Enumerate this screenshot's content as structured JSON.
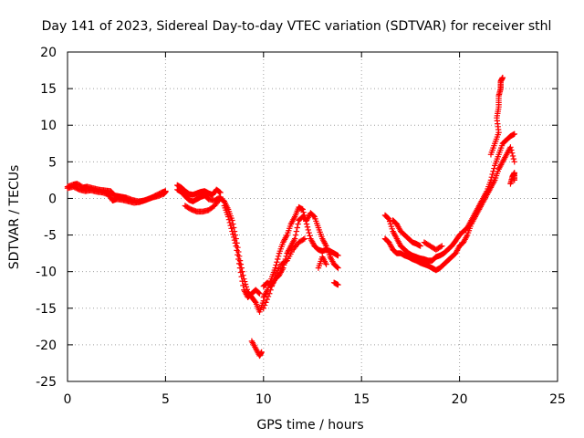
{
  "chart_data": {
    "type": "scatter",
    "title": "Day 141 of 2023, Sidereal Day-to-day VTEC variation (SDTVAR) for receiver sthl",
    "xlabel": "GPS time / hours",
    "ylabel": "SDTVAR / TECUs",
    "xlim": [
      0,
      25
    ],
    "ylim": [
      -25,
      20
    ],
    "x_ticks": [
      0,
      5,
      10,
      15,
      20,
      25
    ],
    "x_tick_labels": [
      "0",
      "5",
      "10",
      "15",
      "20",
      "25"
    ],
    "y_ticks": [
      -25,
      -20,
      -15,
      -10,
      -5,
      0,
      5,
      10,
      15,
      20
    ],
    "y_tick_labels": [
      "-25",
      "-20",
      "-15",
      "-10",
      "-5",
      "0",
      "5",
      "10",
      "15",
      "20"
    ],
    "grid": true,
    "marker": "+",
    "marker_color": "#ff0000",
    "series": [
      {
        "name": "sthl",
        "segments": [
          [
            [
              0.0,
              1.6
            ],
            [
              0.3,
              1.9
            ],
            [
              0.5,
              2.0
            ],
            [
              0.8,
              1.5
            ],
            [
              1.0,
              1.6
            ],
            [
              1.3,
              1.4
            ],
            [
              1.6,
              1.2
            ],
            [
              1.9,
              1.1
            ],
            [
              2.2,
              1.0
            ],
            [
              2.4,
              0.4
            ],
            [
              2.6,
              0.3
            ],
            [
              2.8,
              0.2
            ],
            [
              3.0,
              0.1
            ],
            [
              3.3,
              -0.2
            ],
            [
              3.6,
              -0.4
            ],
            [
              3.9,
              -0.3
            ],
            [
              4.2,
              0.0
            ],
            [
              4.5,
              0.4
            ],
            [
              4.8,
              0.8
            ],
            [
              5.0,
              1.0
            ]
          ],
          [
            [
              0.0,
              1.4
            ],
            [
              0.3,
              1.6
            ],
            [
              0.6,
              1.2
            ],
            [
              0.9,
              1.0
            ],
            [
              1.2,
              1.1
            ],
            [
              1.5,
              0.9
            ],
            [
              1.8,
              0.8
            ],
            [
              2.1,
              0.5
            ],
            [
              2.3,
              -0.3
            ],
            [
              2.5,
              -0.1
            ],
            [
              2.8,
              -0.2
            ],
            [
              3.1,
              -0.4
            ],
            [
              3.4,
              -0.6
            ],
            [
              3.7,
              -0.5
            ],
            [
              4.0,
              -0.2
            ],
            [
              4.3,
              0.1
            ],
            [
              4.6,
              0.3
            ],
            [
              4.9,
              0.6
            ],
            [
              5.0,
              0.9
            ]
          ],
          [
            [
              5.6,
              1.8
            ],
            [
              5.8,
              1.5
            ],
            [
              6.0,
              1.0
            ],
            [
              6.2,
              0.6
            ],
            [
              6.4,
              0.5
            ],
            [
              6.6,
              0.7
            ],
            [
              6.8,
              0.9
            ],
            [
              7.0,
              1.0
            ],
            [
              7.2,
              0.7
            ],
            [
              7.4,
              0.5
            ],
            [
              7.6,
              1.2
            ],
            [
              7.8,
              0.8
            ]
          ],
          [
            [
              5.6,
              1.2
            ],
            [
              5.8,
              0.9
            ],
            [
              6.0,
              0.3
            ],
            [
              6.2,
              -0.2
            ],
            [
              6.4,
              -0.4
            ],
            [
              6.6,
              -0.1
            ],
            [
              6.8,
              0.2
            ],
            [
              7.0,
              0.4
            ],
            [
              7.2,
              -0.1
            ],
            [
              7.5,
              -0.3
            ],
            [
              7.8,
              0.2
            ]
          ],
          [
            [
              6.0,
              -1.0
            ],
            [
              6.3,
              -1.5
            ],
            [
              6.6,
              -1.8
            ],
            [
              6.9,
              -1.8
            ],
            [
              7.2,
              -1.6
            ],
            [
              7.5,
              -1.0
            ],
            [
              7.8,
              0.0
            ],
            [
              8.0,
              -0.4
            ],
            [
              8.2,
              -1.5
            ],
            [
              8.4,
              -3.0
            ],
            [
              8.6,
              -5.5
            ],
            [
              8.8,
              -8.5
            ],
            [
              9.0,
              -11.0
            ],
            [
              9.2,
              -12.8
            ],
            [
              9.4,
              -13.5
            ],
            [
              9.6,
              -14.2
            ],
            [
              9.8,
              -15.5
            ],
            [
              10.0,
              -14.0
            ]
          ],
          [
            [
              8.0,
              -1.0
            ],
            [
              8.2,
              -2.5
            ],
            [
              8.4,
              -4.5
            ],
            [
              8.6,
              -6.5
            ],
            [
              8.8,
              -9.5
            ],
            [
              9.0,
              -12.5
            ],
            [
              9.2,
              -13.5
            ],
            [
              9.4,
              -13.0
            ],
            [
              9.6,
              -12.5
            ],
            [
              9.8,
              -13.0
            ]
          ],
          [
            [
              9.4,
              -19.5
            ],
            [
              9.6,
              -20.5
            ],
            [
              9.8,
              -21.5
            ],
            [
              9.9,
              -21.0
            ]
          ],
          [
            [
              10.0,
              -13.5
            ],
            [
              10.2,
              -12.5
            ],
            [
              10.4,
              -11.0
            ],
            [
              10.6,
              -9.5
            ],
            [
              10.8,
              -7.5
            ],
            [
              11.0,
              -6.0
            ],
            [
              11.2,
              -5.0
            ],
            [
              11.4,
              -3.5
            ],
            [
              11.6,
              -2.5
            ],
            [
              11.8,
              -1.2
            ],
            [
              12.0,
              -1.5
            ],
            [
              12.2,
              -3.5
            ],
            [
              12.4,
              -5.5
            ],
            [
              12.6,
              -6.5
            ],
            [
              12.8,
              -7.0
            ],
            [
              13.0,
              -7.2
            ],
            [
              13.2,
              -7.0
            ],
            [
              13.4,
              -7.2
            ],
            [
              13.6,
              -7.5
            ],
            [
              13.8,
              -7.8
            ]
          ],
          [
            [
              10.0,
              -12.0
            ],
            [
              10.2,
              -11.5
            ],
            [
              10.4,
              -12.0
            ],
            [
              10.6,
              -11.0
            ],
            [
              10.8,
              -10.5
            ],
            [
              11.0,
              -9.5
            ],
            [
              11.2,
              -7.5
            ],
            [
              11.4,
              -6.5
            ],
            [
              11.6,
              -5.5
            ],
            [
              11.8,
              -3.0
            ],
            [
              12.0,
              -2.5
            ],
            [
              12.2,
              -3.0
            ],
            [
              12.4,
              -2.0
            ],
            [
              12.6,
              -2.5
            ],
            [
              12.8,
              -4.0
            ],
            [
              13.0,
              -5.5
            ],
            [
              13.2,
              -6.5
            ],
            [
              13.4,
              -8.0
            ],
            [
              13.6,
              -9.0
            ],
            [
              13.8,
              -9.5
            ]
          ],
          [
            [
              10.0,
              -15.0
            ],
            [
              10.3,
              -13.0
            ],
            [
              10.6,
              -10.5
            ],
            [
              10.9,
              -9.0
            ],
            [
              11.2,
              -8.5
            ],
            [
              11.5,
              -7.0
            ],
            [
              11.8,
              -6.0
            ],
            [
              12.1,
              -5.5
            ]
          ],
          [
            [
              12.8,
              -9.5
            ],
            [
              13.0,
              -8.0
            ],
            [
              13.2,
              -9.0
            ]
          ],
          [
            [
              13.6,
              -11.5
            ],
            [
              13.8,
              -11.8
            ]
          ],
          [
            [
              16.2,
              -2.3
            ],
            [
              16.4,
              -2.8
            ],
            [
              16.6,
              -4.5
            ],
            [
              16.8,
              -5.5
            ],
            [
              17.0,
              -6.5
            ],
            [
              17.2,
              -7.0
            ],
            [
              17.4,
              -7.5
            ],
            [
              17.6,
              -7.8
            ],
            [
              17.8,
              -8.0
            ],
            [
              18.0,
              -8.2
            ],
            [
              18.2,
              -8.3
            ],
            [
              18.4,
              -8.5
            ],
            [
              18.6,
              -8.5
            ],
            [
              18.8,
              -8.0
            ],
            [
              19.0,
              -7.8
            ],
            [
              19.2,
              -7.5
            ],
            [
              19.4,
              -7.0
            ],
            [
              19.6,
              -6.5
            ],
            [
              19.8,
              -5.8
            ],
            [
              20.0,
              -5.0
            ],
            [
              20.2,
              -4.5
            ],
            [
              20.4,
              -4.0
            ],
            [
              20.6,
              -3.0
            ],
            [
              20.8,
              -2.0
            ],
            [
              21.0,
              -1.0
            ],
            [
              21.2,
              0.0
            ],
            [
              21.4,
              1.0
            ],
            [
              21.6,
              2.5
            ],
            [
              21.8,
              4.5
            ],
            [
              22.0,
              6.0
            ],
            [
              22.2,
              7.5
            ],
            [
              22.4,
              8.0
            ],
            [
              22.6,
              8.5
            ],
            [
              22.8,
              8.8
            ]
          ],
          [
            [
              16.2,
              -5.5
            ],
            [
              16.4,
              -6.0
            ],
            [
              16.6,
              -7.0
            ],
            [
              16.8,
              -7.5
            ],
            [
              17.0,
              -7.5
            ],
            [
              17.2,
              -7.8
            ],
            [
              17.4,
              -8.0
            ],
            [
              17.6,
              -8.3
            ],
            [
              17.8,
              -8.5
            ],
            [
              18.0,
              -8.8
            ],
            [
              18.2,
              -9.0
            ],
            [
              18.4,
              -9.2
            ],
            [
              18.6,
              -9.5
            ],
            [
              18.8,
              -9.8
            ],
            [
              19.0,
              -9.5
            ],
            [
              19.2,
              -9.0
            ],
            [
              19.4,
              -8.5
            ],
            [
              19.6,
              -8.0
            ],
            [
              19.8,
              -7.5
            ],
            [
              20.0,
              -6.5
            ],
            [
              20.2,
              -6.0
            ],
            [
              20.4,
              -5.0
            ],
            [
              20.6,
              -3.5
            ],
            [
              20.8,
              -2.5
            ],
            [
              21.0,
              -1.5
            ],
            [
              21.2,
              -0.5
            ],
            [
              21.4,
              0.5
            ],
            [
              21.6,
              1.5
            ],
            [
              21.8,
              2.5
            ],
            [
              22.0,
              4.0
            ],
            [
              22.2,
              5.0
            ],
            [
              22.4,
              6.0
            ],
            [
              22.6,
              7.0
            ],
            [
              22.8,
              5.0
            ]
          ],
          [
            [
              16.6,
              -3.0
            ],
            [
              16.8,
              -3.5
            ],
            [
              17.0,
              -4.5
            ],
            [
              17.2,
              -5.0
            ],
            [
              17.4,
              -5.5
            ],
            [
              17.6,
              -6.0
            ],
            [
              17.8,
              -6.2
            ],
            [
              18.0,
              -6.5
            ]
          ],
          [
            [
              18.2,
              -6.0
            ],
            [
              18.5,
              -6.5
            ],
            [
              18.8,
              -7.0
            ],
            [
              19.1,
              -6.5
            ]
          ],
          [
            [
              21.6,
              6.0
            ],
            [
              21.8,
              7.5
            ],
            [
              22.0,
              9.0
            ],
            [
              21.9,
              11.0
            ],
            [
              22.0,
              12.5
            ],
            [
              22.0,
              14.0
            ],
            [
              22.1,
              15.0
            ],
            [
              22.1,
              16.0
            ],
            [
              22.2,
              16.5
            ]
          ],
          [
            [
              22.6,
              2.0
            ],
            [
              22.7,
              3.0
            ],
            [
              22.8,
              3.5
            ],
            [
              22.8,
              2.5
            ]
          ]
        ]
      }
    ]
  }
}
